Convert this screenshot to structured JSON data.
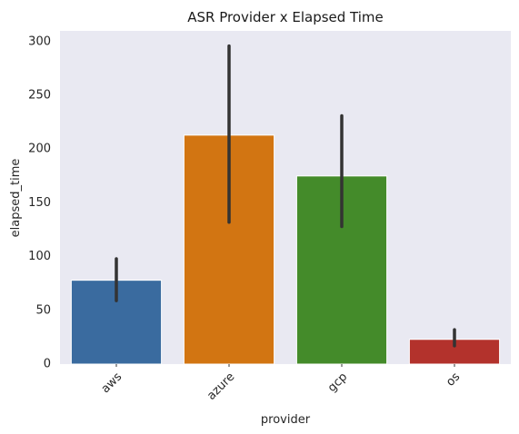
{
  "chart_data": {
    "type": "bar",
    "title": "ASR Provider x Elapsed Time",
    "xlabel": "provider",
    "ylabel": "elapsed_time",
    "categories": [
      "aws",
      "azure",
      "gcp",
      "os"
    ],
    "values": [
      78,
      213,
      175,
      23
    ],
    "error_bars": [
      {
        "low": 59,
        "high": 98
      },
      {
        "low": 132,
        "high": 296
      },
      {
        "low": 128,
        "high": 231
      },
      {
        "low": 17,
        "high": 32
      }
    ],
    "colors": [
      "#3a6b9f",
      "#d27512",
      "#448b2a",
      "#b3322c"
    ],
    "ylim": [
      0,
      310
    ],
    "yticks": [
      "0",
      "50",
      "100",
      "150",
      "200",
      "250",
      "300"
    ],
    "ytick_values": [
      0,
      50,
      100,
      150,
      200,
      250,
      300
    ],
    "grid": false,
    "background": "#e9e9f2",
    "error_color": "#333333"
  }
}
